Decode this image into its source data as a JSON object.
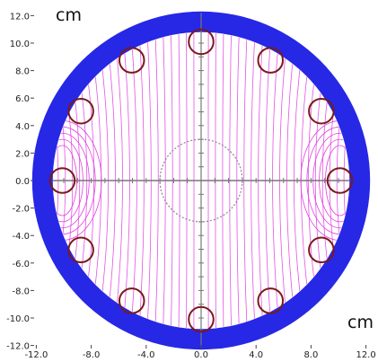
{
  "plot": {
    "unit_top": "cm",
    "unit_bottom": "cm",
    "y_ticks": [
      {
        "value": 12,
        "label": "12.0"
      },
      {
        "value": 10,
        "label": "10.0"
      },
      {
        "value": 8,
        "label": "8.0"
      },
      {
        "value": 6,
        "label": "6.0"
      },
      {
        "value": 4,
        "label": "4.0"
      },
      {
        "value": 2,
        "label": "2.0"
      },
      {
        "value": 0,
        "label": "0.0"
      },
      {
        "value": -2,
        "label": "-2.0"
      },
      {
        "value": -4,
        "label": "-4.0"
      },
      {
        "value": -6,
        "label": "-6.0"
      },
      {
        "value": -8,
        "label": "-8.0"
      },
      {
        "value": -10,
        "label": "-10.0"
      },
      {
        "value": -12,
        "label": "-12.0"
      }
    ],
    "x_ticks": [
      {
        "value": -12,
        "label": "-12.0"
      },
      {
        "value": -8,
        "label": "-8.0"
      },
      {
        "value": -4,
        "label": "-4.0"
      },
      {
        "value": 0,
        "label": "0.0"
      },
      {
        "value": 4,
        "label": "4.0"
      },
      {
        "value": 8,
        "label": "8.0"
      },
      {
        "value": 12,
        "label": "12.0"
      }
    ],
    "colors": {
      "yoke": "#2727e6",
      "bore": "#ffffff",
      "field_lines": "#e23ee2",
      "conductors": "#7a1a1a",
      "axes": "#777777",
      "ref_circle": "#888888"
    },
    "yoke": {
      "outer_radius_cm": 12.3,
      "inner_radius_cm": 10.8
    },
    "reference_circle_radius_cm": 3.0,
    "conductors": [
      {
        "x": 0.0,
        "y": 10.1
      },
      {
        "x": 5.05,
        "y": 8.75
      },
      {
        "x": 8.75,
        "y": 5.05
      },
      {
        "x": 10.1,
        "y": 0.0
      },
      {
        "x": 8.75,
        "y": -5.05
      },
      {
        "x": 5.05,
        "y": -8.75
      },
      {
        "x": 0.0,
        "y": -10.1
      },
      {
        "x": -5.05,
        "y": -8.75
      },
      {
        "x": -8.75,
        "y": -5.05
      },
      {
        "x": -10.1,
        "y": 0.0
      },
      {
        "x": -8.75,
        "y": 5.05
      },
      {
        "x": -5.05,
        "y": 8.75
      }
    ],
    "conductor_radius_cm": 0.9
  }
}
